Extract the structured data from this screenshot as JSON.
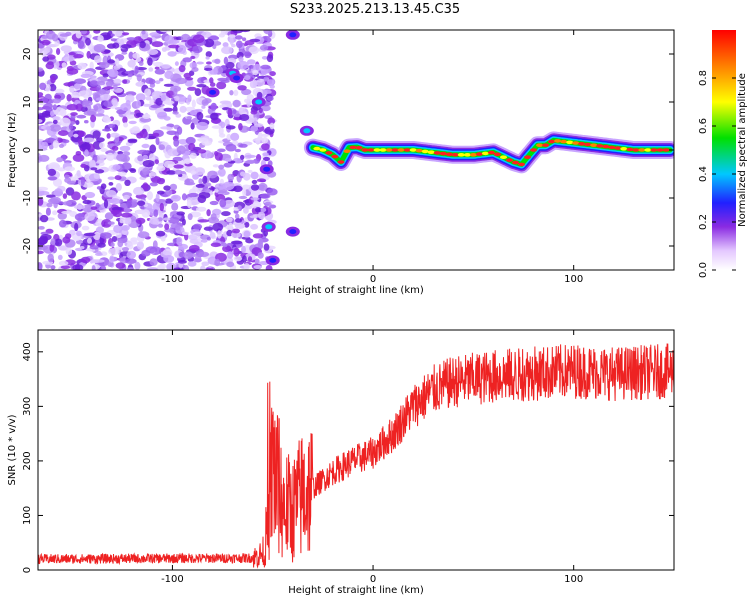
{
  "title": "S233.2025.213.13.45.C35",
  "chart_data": [
    {
      "type": "heatmap",
      "xlabel": "Height of straight line (km)",
      "ylabel": "Frequency (Hz)",
      "xlim": [
        -167,
        150
      ],
      "ylim": [
        -25,
        25
      ],
      "xticks": [
        -100,
        0,
        100
      ],
      "yticks": [
        -20,
        -10,
        0,
        10,
        20
      ],
      "colorbar": {
        "label": "Normalized spectral amplitude",
        "range": [
          0,
          1
        ],
        "ticks": [
          0.0,
          0.2,
          0.4,
          0.6,
          0.8
        ]
      },
      "ridge": {
        "x": [
          -30,
          -25,
          -20,
          -16,
          -12,
          -8,
          -4,
          0,
          10,
          20,
          30,
          40,
          50,
          60,
          70,
          74,
          78,
          82,
          86,
          90,
          100,
          110,
          120,
          130,
          140,
          148
        ],
        "y": [
          0.5,
          0,
          -1,
          -2.5,
          0.5,
          0.6,
          0,
          0,
          0,
          0,
          -0.5,
          -1,
          -1,
          -0.5,
          -2.5,
          -3,
          -1,
          1,
          1,
          2,
          1.5,
          1,
          0.5,
          0,
          0,
          0
        ]
      }
    },
    {
      "type": "line",
      "xlabel": "Height of straight line (km)",
      "ylabel": "SNR (10 * v/v)",
      "xlim": [
        -167,
        150
      ],
      "ylim": [
        0,
        440
      ],
      "xticks": [
        -100,
        0,
        100
      ],
      "yticks": [
        0,
        100,
        200,
        300,
        400
      ],
      "color": "#ee2222",
      "envelope": {
        "x": [
          -167,
          -60,
          -55,
          -52,
          -50,
          -45,
          -40,
          -35,
          -30,
          -20,
          -10,
          0,
          10,
          20,
          30,
          40,
          60,
          80,
          100,
          120,
          150
        ],
        "y": [
          20,
          22,
          30,
          90,
          200,
          120,
          110,
          140,
          150,
          180,
          200,
          215,
          250,
          300,
          330,
          345,
          355,
          360,
          365,
          360,
          365
        ]
      }
    }
  ]
}
